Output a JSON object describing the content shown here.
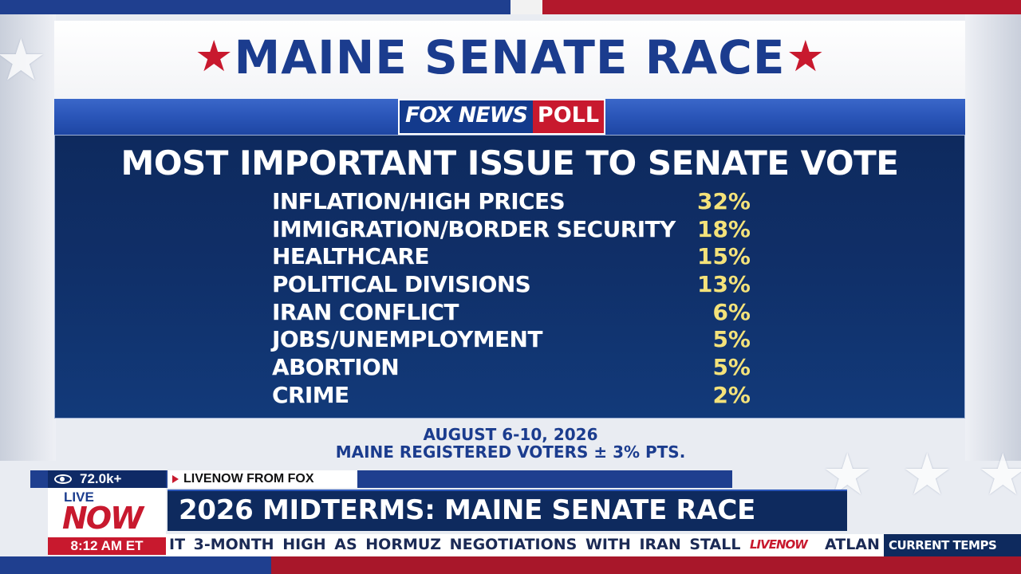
{
  "header": {
    "title": "MAINE SENATE RACE",
    "star_glyph": "★",
    "logo_fox": "FOX NEWS",
    "logo_poll": "POLL"
  },
  "poll": {
    "heading": "MOST IMPORTANT ISSUE TO SENATE VOTE",
    "rows": [
      {
        "label": "INFLATION/HIGH PRICES",
        "value": "32%"
      },
      {
        "label": "IMMIGRATION/BORDER SECURITY",
        "value": "18%"
      },
      {
        "label": "HEALTHCARE",
        "value": "15%"
      },
      {
        "label": "POLITICAL DIVISIONS",
        "value": "13%"
      },
      {
        "label": "IRAN CONFLICT",
        "value": "6%"
      },
      {
        "label": "JOBS/UNEMPLOYMENT",
        "value": "5%"
      },
      {
        "label": "ABORTION",
        "value": "5%"
      },
      {
        "label": "CRIME",
        "value": "2%"
      }
    ],
    "dates": "AUGUST 6-10, 2026",
    "sample": "MAINE REGISTERED VOTERS ± 3% PTS."
  },
  "lower_third": {
    "viewers": "72.0k+",
    "source": "LIVENOW FROM FOX",
    "badge_top": "LIVE",
    "badge_bottom": "NOW",
    "time": "8:12 AM ET",
    "headline": "2026 MIDTERMS: MAINE SENATE RACE",
    "ticker": "IT 3-MONTH HIGH AS HORMUZ NEGOTIATIONS WITH IRAN STALL",
    "ticker_logo": "LIVENOW",
    "ticker_after": "ATLAN",
    "current_temps": "CURRENT TEMPS"
  },
  "colors": {
    "brand_blue": "#1b3c8e",
    "brand_red": "#c8192e",
    "value_yellow": "#f4e27a",
    "panel_navy": "#0e2a5e"
  }
}
